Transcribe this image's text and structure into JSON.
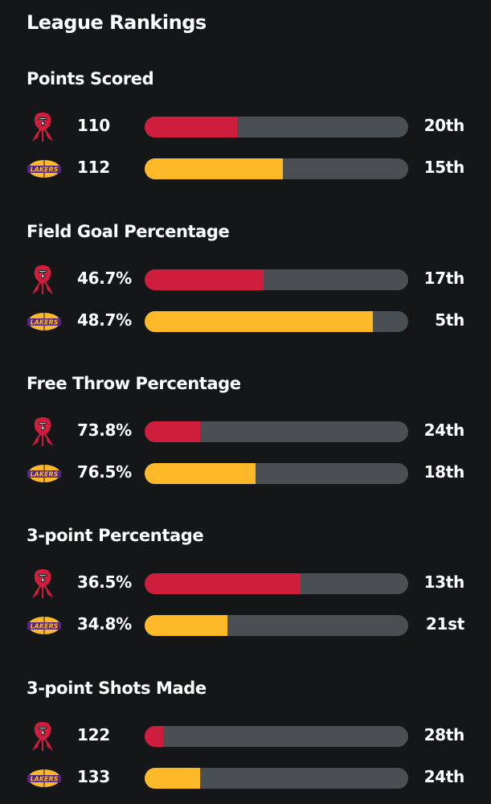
{
  "page_title": "League Rankings",
  "colors": {
    "rockets": "#cf1d3d",
    "lakers": "#fdb927",
    "track": "#4a4f53",
    "background": "#141618"
  },
  "teams": [
    {
      "key": "rockets",
      "logo_icon": "houston-rockets-logo-icon"
    },
    {
      "key": "lakers",
      "logo_icon": "la-lakers-logo-icon",
      "logo_text": "LAKERS"
    }
  ],
  "sections": [
    {
      "title": "Points Scored",
      "rows": [
        {
          "team": "rockets",
          "value": "110",
          "rank": "20th",
          "fill": 0.35
        },
        {
          "team": "lakers",
          "value": "112",
          "rank": "15th",
          "fill": 0.525
        }
      ]
    },
    {
      "title": "Field Goal Percentage",
      "rows": [
        {
          "team": "rockets",
          "value": "46.7%",
          "rank": "17th",
          "fill": 0.45
        },
        {
          "team": "lakers",
          "value": "48.7%",
          "rank": "5th",
          "fill": 0.865
        }
      ]
    },
    {
      "title": "Free Throw Percentage",
      "rows": [
        {
          "team": "rockets",
          "value": "73.8%",
          "rank": "24th",
          "fill": 0.21
        },
        {
          "team": "lakers",
          "value": "76.5%",
          "rank": "18th",
          "fill": 0.42
        }
      ]
    },
    {
      "title": "3-point Percentage",
      "rows": [
        {
          "team": "rockets",
          "value": "36.5%",
          "rank": "13th",
          "fill": 0.59
        },
        {
          "team": "lakers",
          "value": "34.8%",
          "rank": "21st",
          "fill": 0.315
        }
      ]
    },
    {
      "title": "3-point Shots Made",
      "rows": [
        {
          "team": "rockets",
          "value": "122",
          "rank": "28th",
          "fill": 0.07
        },
        {
          "team": "lakers",
          "value": "133",
          "rank": "24th",
          "fill": 0.21
        }
      ]
    }
  ]
}
